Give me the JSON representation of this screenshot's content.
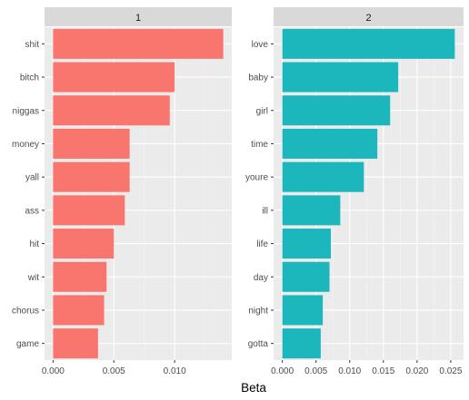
{
  "chart_data": {
    "type": "bar",
    "orientation": "horizontal",
    "xlabel": "Beta",
    "grid": true,
    "facets": [
      {
        "strip": "1",
        "color": "#F8766D",
        "categories": [
          "shit",
          "bitch",
          "niggas",
          "money",
          "yall",
          "ass",
          "hit",
          "wit",
          "chorus",
          "game"
        ],
        "values": [
          0.014,
          0.01,
          0.0096,
          0.0063,
          0.0063,
          0.0059,
          0.005,
          0.0044,
          0.0042,
          0.0037
        ],
        "xlim": [
          -0.0007,
          0.0147
        ],
        "xticks": [
          0,
          0.005,
          0.01
        ],
        "xtick_labels": [
          "0.000",
          "0.005",
          "0.010"
        ]
      },
      {
        "strip": "2",
        "color": "#1CB7BD",
        "categories": [
          "love",
          "baby",
          "girl",
          "time",
          "youre",
          "ill",
          "life",
          "day",
          "night",
          "gotta"
        ],
        "values": [
          0.0256,
          0.0172,
          0.016,
          0.0141,
          0.0121,
          0.0086,
          0.0072,
          0.007,
          0.006,
          0.0057
        ],
        "xlim": [
          -0.0013,
          0.0269
        ],
        "xticks": [
          0,
          0.005,
          0.01,
          0.015,
          0.02,
          0.025
        ],
        "xtick_labels": [
          "0.000",
          "0.005",
          "0.010",
          "0.015",
          "0.020",
          "0.025"
        ]
      }
    ]
  }
}
